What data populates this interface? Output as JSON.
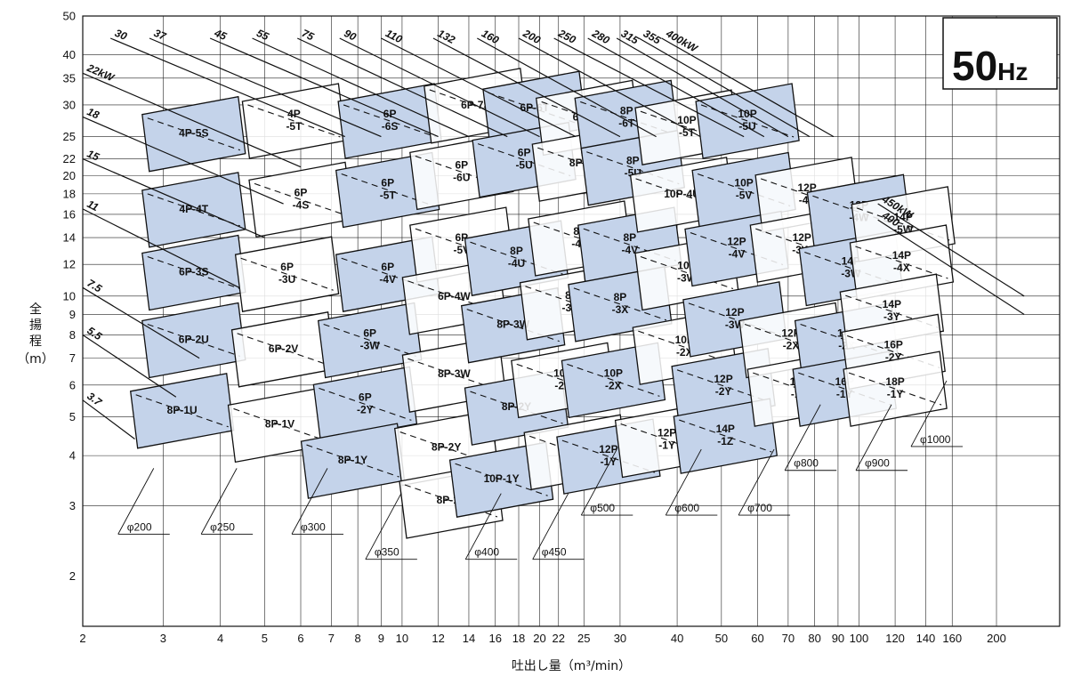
{
  "chart_data": {
    "type": "scatter",
    "title": "",
    "frequency_badge": {
      "number": "50",
      "unit": "Hz"
    },
    "xlabel": "吐出し量（m³/min）",
    "ylabel_chars": [
      "全",
      "揚",
      "程",
      "（m）"
    ],
    "x_scale": "log",
    "y_scale": "log",
    "xlim": [
      2,
      200
    ],
    "ylim": [
      1.5,
      50
    ],
    "grid": true,
    "x_ticks": [
      {
        "v": 2,
        "label": "2"
      },
      {
        "v": 3,
        "label": "3"
      },
      {
        "v": 4,
        "label": "4"
      },
      {
        "v": 5,
        "label": "5"
      },
      {
        "v": 6,
        "label": "6"
      },
      {
        "v": 7,
        "label": "7"
      },
      {
        "v": 8,
        "label": "8"
      },
      {
        "v": 9,
        "label": "9"
      },
      {
        "v": 10,
        "label": "10"
      },
      {
        "v": 12,
        "label": "12"
      },
      {
        "v": 14,
        "label": "14"
      },
      {
        "v": 16,
        "label": "16"
      },
      {
        "v": 18,
        "label": "18"
      },
      {
        "v": 20,
        "label": "20"
      },
      {
        "v": 22,
        "label": "22"
      },
      {
        "v": 25,
        "label": "25"
      },
      {
        "v": 30,
        "label": "30"
      },
      {
        "v": 40,
        "label": "40"
      },
      {
        "v": 50,
        "label": "50"
      },
      {
        "v": 60,
        "label": "60"
      },
      {
        "v": 70,
        "label": "70"
      },
      {
        "v": 80,
        "label": "80"
      },
      {
        "v": 90,
        "label": "90"
      },
      {
        "v": 100,
        "label": "100"
      },
      {
        "v": 120,
        "label": "120"
      },
      {
        "v": 140,
        "label": "140"
      },
      {
        "v": 160,
        "label": "160"
      },
      {
        "v": 200,
        "label": "200"
      }
    ],
    "y_ticks": [
      {
        "v": 2,
        "label": "2"
      },
      {
        "v": 3,
        "label": "3"
      },
      {
        "v": 4,
        "label": "4"
      },
      {
        "v": 5,
        "label": "5"
      },
      {
        "v": 6,
        "label": "6"
      },
      {
        "v": 7,
        "label": "7"
      },
      {
        "v": 8,
        "label": "8"
      },
      {
        "v": 9,
        "label": "9"
      },
      {
        "v": 10,
        "label": "10"
      },
      {
        "v": 12,
        "label": "12"
      },
      {
        "v": 14,
        "label": "14"
      },
      {
        "v": 16,
        "label": "16"
      },
      {
        "v": 18,
        "label": "18"
      },
      {
        "v": 20,
        "label": "20"
      },
      {
        "v": 22,
        "label": "22"
      },
      {
        "v": 25,
        "label": "25"
      },
      {
        "v": 30,
        "label": "30"
      },
      {
        "v": 35,
        "label": "35"
      },
      {
        "v": 40,
        "label": "40"
      },
      {
        "v": 50,
        "label": "50"
      }
    ],
    "power_lines": [
      {
        "label": "3.7",
        "x": 2,
        "y": 5.5,
        "x2": 2.6,
        "y2": 4.4
      },
      {
        "label": "5.5",
        "x": 2,
        "y": 8,
        "x2": 3.2,
        "y2": 5.6
      },
      {
        "label": "7.5",
        "x": 2,
        "y": 10.5,
        "x2": 3.6,
        "y2": 7
      },
      {
        "label": "11",
        "x": 2,
        "y": 16.5,
        "x2": 4.4,
        "y2": 10.5
      },
      {
        "label": "15",
        "x": 2,
        "y": 22,
        "x2": 5,
        "y2": 14
      },
      {
        "label": "18",
        "x": 2,
        "y": 28,
        "x2": 5.5,
        "y2": 17
      },
      {
        "label": "22kW",
        "x": 2,
        "y": 36,
        "x2": 6,
        "y2": 21
      },
      {
        "label": "30",
        "x": 2.3,
        "y": 44,
        "x2": 7.5,
        "y2": 25
      },
      {
        "label": "37",
        "x": 2.8,
        "y": 44,
        "x2": 9,
        "y2": 25
      },
      {
        "label": "45",
        "x": 3.8,
        "y": 44,
        "x2": 12,
        "y2": 25
      },
      {
        "label": "55",
        "x": 4.7,
        "y": 44,
        "x2": 14,
        "y2": 25
      },
      {
        "label": "75",
        "x": 5.9,
        "y": 44,
        "x2": 17,
        "y2": 25
      },
      {
        "label": "90",
        "x": 7.3,
        "y": 44,
        "x2": 20,
        "y2": 25
      },
      {
        "label": "110",
        "x": 9,
        "y": 44,
        "x2": 24,
        "y2": 25
      },
      {
        "label": "132",
        "x": 11.7,
        "y": 44,
        "x2": 30,
        "y2": 25
      },
      {
        "label": "160",
        "x": 14.6,
        "y": 44,
        "x2": 36,
        "y2": 25
      },
      {
        "label": "200",
        "x": 18,
        "y": 44,
        "x2": 45,
        "y2": 25
      },
      {
        "label": "250",
        "x": 21.5,
        "y": 44,
        "x2": 56,
        "y2": 25
      },
      {
        "label": "280",
        "x": 25.5,
        "y": 44,
        "x2": 62,
        "y2": 25
      },
      {
        "label": "315",
        "x": 29.5,
        "y": 44,
        "x2": 70,
        "y2": 25
      },
      {
        "label": "355",
        "x": 33,
        "y": 44,
        "x2": 78,
        "y2": 25
      },
      {
        "label": "400kW",
        "x": 37,
        "y": 44,
        "x2": 88,
        "y2": 25
      },
      {
        "label": "450kW",
        "x": 110,
        "y": 17,
        "x2": 230,
        "y2": 10
      },
      {
        "label": "400",
        "x": 110,
        "y": 15.5,
        "x2": 230,
        "y2": 9
      }
    ],
    "zones": [
      {
        "lines": [
          "4P-5S"
        ],
        "x": 3.5,
        "y": 25.5,
        "shaded": true
      },
      {
        "lines": [
          "4P-4T"
        ],
        "x": 3.5,
        "y": 16.5,
        "shaded": true
      },
      {
        "lines": [
          "6P-3S"
        ],
        "x": 3.5,
        "y": 11.5,
        "shaded": true
      },
      {
        "lines": [
          "6P-2U"
        ],
        "x": 3.5,
        "y": 7.8,
        "shaded": true
      },
      {
        "lines": [
          "8P-1U"
        ],
        "x": 3.3,
        "y": 5.2,
        "shaded": true
      },
      {
        "lines": [
          "4P",
          "-5T"
        ],
        "x": 5.8,
        "y": 27.5,
        "shaded": false
      },
      {
        "lines": [
          "6P",
          "-4S"
        ],
        "x": 6,
        "y": 17.5,
        "shaded": false
      },
      {
        "lines": [
          "6P",
          "-3U"
        ],
        "x": 5.6,
        "y": 11.4,
        "shaded": false
      },
      {
        "lines": [
          "6P-2V"
        ],
        "x": 5.5,
        "y": 7.4,
        "shaded": false
      },
      {
        "lines": [
          "8P-1V"
        ],
        "x": 5.4,
        "y": 4.8,
        "shaded": false
      },
      {
        "lines": [
          "6P",
          "-6S"
        ],
        "x": 9.4,
        "y": 27.5,
        "shaded": true
      },
      {
        "lines": [
          "6P",
          "-5T"
        ],
        "x": 9.3,
        "y": 18.5,
        "shaded": true
      },
      {
        "lines": [
          "6P",
          "-4V"
        ],
        "x": 9.3,
        "y": 11.4,
        "shaded": true
      },
      {
        "lines": [
          "6P",
          "-3W"
        ],
        "x": 8.5,
        "y": 7.8,
        "shaded": true
      },
      {
        "lines": [
          "6P",
          "-2Y"
        ],
        "x": 8.3,
        "y": 5.4,
        "shaded": true
      },
      {
        "lines": [
          "8P-1Y"
        ],
        "x": 7.8,
        "y": 3.9,
        "shaded": true
      },
      {
        "lines": [
          "6P-7S"
        ],
        "x": 14.5,
        "y": 30,
        "shaded": false
      },
      {
        "lines": [
          "6P",
          "-6U"
        ],
        "x": 13.5,
        "y": 20.5,
        "shaded": false
      },
      {
        "lines": [
          "6P",
          "-5V"
        ],
        "x": 13.5,
        "y": 13.5,
        "shaded": false
      },
      {
        "lines": [
          "6P-4W"
        ],
        "x": 13,
        "y": 10,
        "shaded": false
      },
      {
        "lines": [
          "8P-3W"
        ],
        "x": 13,
        "y": 6.4,
        "shaded": false
      },
      {
        "lines": [
          "8P-2Y"
        ],
        "x": 12.5,
        "y": 4.2,
        "shaded": false
      },
      {
        "lines": [
          "8P-1Z"
        ],
        "x": 12.8,
        "y": 3.1,
        "shaded": false
      },
      {
        "lines": [
          "6P-6T"
        ],
        "x": 19.5,
        "y": 29.5,
        "shaded": true
      },
      {
        "lines": [
          "6P",
          "-5U"
        ],
        "x": 18.5,
        "y": 22,
        "shaded": true
      },
      {
        "lines": [
          "8P",
          "-4U"
        ],
        "x": 17.8,
        "y": 12.5,
        "shaded": true
      },
      {
        "lines": [
          "8P-3W"
        ],
        "x": 17.5,
        "y": 8.5,
        "shaded": true
      },
      {
        "lines": [
          "8P-2Y"
        ],
        "x": 17.8,
        "y": 5.3,
        "shaded": true
      },
      {
        "lines": [
          "10P-1Y"
        ],
        "x": 16.5,
        "y": 3.5,
        "shaded": true
      },
      {
        "lines": [
          "6P-6U"
        ],
        "x": 25.5,
        "y": 28,
        "shaded": false
      },
      {
        "lines": [
          "8P-5T"
        ],
        "x": 25,
        "y": 21.5,
        "shaded": false
      },
      {
        "lines": [
          "8P",
          "-4V"
        ],
        "x": 24.5,
        "y": 14,
        "shaded": false
      },
      {
        "lines": [
          "8P",
          "-3W"
        ],
        "x": 23.5,
        "y": 9.7,
        "shaded": false
      },
      {
        "lines": [
          "10P",
          "-2X"
        ],
        "x": 22.5,
        "y": 6.2,
        "shaded": false
      },
      {
        "lines": [
          "10P-1Y"
        ],
        "x": 24,
        "y": 4.1,
        "shaded": false
      },
      {
        "lines": [
          "8P",
          "-6T"
        ],
        "x": 31,
        "y": 28,
        "shaded": true
      },
      {
        "lines": [
          "8P",
          "-5U"
        ],
        "x": 32,
        "y": 21,
        "shaded": true
      },
      {
        "lines": [
          "8P",
          "-4V"
        ],
        "x": 31.5,
        "y": 13.5,
        "shaded": true
      },
      {
        "lines": [
          "8P",
          "-3X"
        ],
        "x": 30,
        "y": 9.6,
        "shaded": true
      },
      {
        "lines": [
          "10P",
          "-2X"
        ],
        "x": 29,
        "y": 6.2,
        "shaded": true
      },
      {
        "lines": [
          "12P",
          "-1Y"
        ],
        "x": 28.3,
        "y": 4,
        "shaded": true
      },
      {
        "lines": [
          "10P",
          "-5T"
        ],
        "x": 42,
        "y": 26.5,
        "shaded": false
      },
      {
        "lines": [
          "10P-4U"
        ],
        "x": 41,
        "y": 18,
        "shaded": false
      },
      {
        "lines": [
          "10P",
          "-3W"
        ],
        "x": 42,
        "y": 11.5,
        "shaded": false
      },
      {
        "lines": [
          "10P",
          "-2X"
        ],
        "x": 41.5,
        "y": 7.5,
        "shaded": false
      },
      {
        "lines": [
          "12P",
          "-1Y"
        ],
        "x": 38,
        "y": 4.4,
        "shaded": false
      },
      {
        "lines": [
          "10P",
          "-5U"
        ],
        "x": 57,
        "y": 27.5,
        "shaded": true
      },
      {
        "lines": [
          "10P",
          "-5V"
        ],
        "x": 56,
        "y": 18.5,
        "shaded": true
      },
      {
        "lines": [
          "12P",
          "-4V"
        ],
        "x": 54,
        "y": 13.2,
        "shaded": true
      },
      {
        "lines": [
          "12P",
          "-3W"
        ],
        "x": 53.5,
        "y": 8.8,
        "shaded": true
      },
      {
        "lines": [
          "12P",
          "-2Y"
        ],
        "x": 50.5,
        "y": 6,
        "shaded": true
      },
      {
        "lines": [
          "14P",
          "-1Z"
        ],
        "x": 51,
        "y": 4.5,
        "shaded": true
      },
      {
        "lines": [
          "12P",
          "-4V"
        ],
        "x": 77,
        "y": 18,
        "shaded": false
      },
      {
        "lines": [
          "12P",
          "-3W"
        ],
        "x": 75,
        "y": 13.5,
        "shaded": false
      },
      {
        "lines": [
          "12P",
          "-2X"
        ],
        "x": 71,
        "y": 7.8,
        "shaded": false
      },
      {
        "lines": [
          "14P",
          "-1Y"
        ],
        "x": 74,
        "y": 5.9,
        "shaded": false
      },
      {
        "lines": [
          "12P",
          "-4W"
        ],
        "x": 100,
        "y": 16.3,
        "shaded": true
      },
      {
        "lines": [
          "14P",
          "-3W"
        ],
        "x": 96,
        "y": 11.8,
        "shaded": true
      },
      {
        "lines": [
          "14P",
          "-2X"
        ],
        "x": 94,
        "y": 7.8,
        "shaded": true
      },
      {
        "lines": [
          "16P",
          "-1Y"
        ],
        "x": 93,
        "y": 5.9,
        "shaded": true
      },
      {
        "lines": [
          "14P",
          "-5W"
        ],
        "x": 125,
        "y": 15.2,
        "shaded": false
      },
      {
        "lines": [
          "14P",
          "-4X"
        ],
        "x": 124,
        "y": 12.2,
        "shaded": false
      },
      {
        "lines": [
          "14P",
          "-3Y"
        ],
        "x": 118,
        "y": 9.2,
        "shaded": false
      },
      {
        "lines": [
          "16P",
          "-2Y"
        ],
        "x": 119,
        "y": 7.3,
        "shaded": false
      },
      {
        "lines": [
          "18P",
          "-1Y"
        ],
        "x": 120,
        "y": 5.9,
        "shaded": false
      }
    ],
    "diameter_labels": [
      {
        "label": "φ200",
        "x": 2.5,
        "y": 2.6
      },
      {
        "label": "φ250",
        "x": 3.8,
        "y": 2.6
      },
      {
        "label": "φ300",
        "x": 6,
        "y": 2.6
      },
      {
        "label": "φ350",
        "x": 8.7,
        "y": 2.25
      },
      {
        "label": "φ400",
        "x": 14.4,
        "y": 2.25
      },
      {
        "label": "φ450",
        "x": 20.2,
        "y": 2.25
      },
      {
        "label": "φ500",
        "x": 25.8,
        "y": 2.9
      },
      {
        "label": "φ600",
        "x": 39.5,
        "y": 2.9
      },
      {
        "label": "φ700",
        "x": 57,
        "y": 2.9
      },
      {
        "label": "φ800",
        "x": 72,
        "y": 3.75
      },
      {
        "label": "φ900",
        "x": 103,
        "y": 3.75
      },
      {
        "label": "φ1000",
        "x": 136,
        "y": 4.3
      }
    ]
  }
}
